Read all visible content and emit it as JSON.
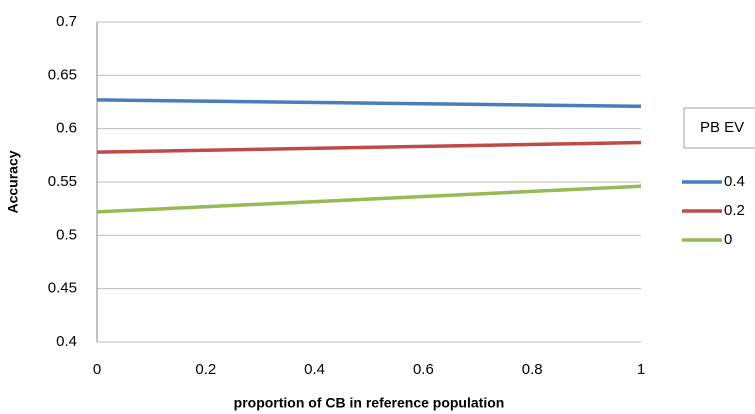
{
  "chart_data": {
    "type": "line",
    "x_label": "proportion of CB in reference population",
    "y_label": "Accuracy",
    "legend_title": "PB EV",
    "x": [
      0,
      1
    ],
    "series": [
      {
        "name": "0.4",
        "color": "#4a7ebb",
        "values": [
          0.627,
          0.621
        ]
      },
      {
        "name": "0.2",
        "color": "#be4b48",
        "values": [
          0.578,
          0.587
        ]
      },
      {
        "name": "0",
        "color": "#98b954",
        "values": [
          0.522,
          0.546
        ]
      }
    ],
    "xlim": [
      0,
      1
    ],
    "xticks": [
      0,
      0.2,
      0.4,
      0.6,
      0.8,
      1
    ],
    "ylim": [
      0.4,
      0.7
    ],
    "yticks": [
      0.4,
      0.45,
      0.5,
      0.55,
      0.6,
      0.65,
      0.7
    ],
    "grid": true,
    "legend": "right"
  }
}
